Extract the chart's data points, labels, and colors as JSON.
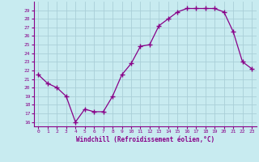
{
  "x": [
    0,
    1,
    2,
    3,
    4,
    5,
    6,
    7,
    8,
    9,
    10,
    11,
    12,
    13,
    14,
    15,
    16,
    17,
    18,
    19,
    20,
    21,
    22,
    23
  ],
  "y": [
    21.5,
    20.5,
    20.0,
    19.0,
    16.0,
    17.5,
    17.2,
    17.2,
    19.0,
    21.5,
    22.8,
    24.8,
    25.0,
    27.2,
    28.0,
    28.8,
    29.2,
    29.2,
    29.2,
    29.2,
    28.8,
    26.5,
    23.0,
    22.2
  ],
  "line_color": "#880088",
  "marker": "+",
  "bg_color": "#C8EBF0",
  "grid_color": "#AACFD8",
  "xlabel": "Windchill (Refroidissement éolien,°C)",
  "ylabel_ticks": [
    16,
    17,
    18,
    19,
    20,
    21,
    22,
    23,
    24,
    25,
    26,
    27,
    28,
    29
  ],
  "ylim": [
    15.5,
    30.0
  ],
  "xlim": [
    -0.5,
    23.5
  ]
}
